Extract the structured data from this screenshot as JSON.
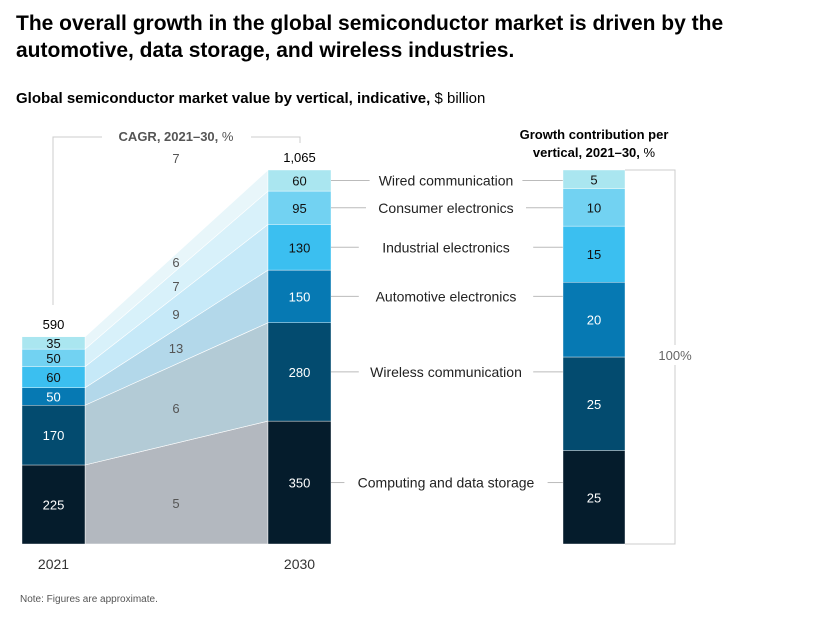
{
  "title": "The overall growth in the global semiconductor market is driven by the automotive, data storage, and wireless industries.",
  "subtitle": "Global semiconductor market value by vertical, indicative,",
  "subtitle_unit": "$ billion",
  "note": "Note: Figures are approximate.",
  "chart_data": [
    {
      "type": "bar",
      "stacked": true,
      "categories": [
        "2021",
        "2030"
      ],
      "totals": [
        "590",
        "1,065"
      ],
      "series": [
        {
          "name": "Computing and data storage",
          "values": [
            225,
            350
          ],
          "cagr": 5,
          "color": "#051c2c",
          "area_color": "#b3b8bf"
        },
        {
          "name": "Wireless communication",
          "values": [
            170,
            280
          ],
          "cagr": 6,
          "color": "#034b6f",
          "area_color": "#b3cbd6"
        },
        {
          "name": "Automotive electronics",
          "values": [
            50,
            150
          ],
          "cagr": 13,
          "color": "#0679b3",
          "area_color": "#b3d8ea"
        },
        {
          "name": "Industrial electronics",
          "values": [
            60,
            130
          ],
          "cagr": 9,
          "color": "#3bbff0",
          "area_color": "#c6e9f8"
        },
        {
          "name": "Consumer electronics",
          "values": [
            50,
            95
          ],
          "cagr": 7,
          "color": "#72d2f2",
          "area_color": "#d8f1fa"
        },
        {
          "name": "Wired communication",
          "values": [
            35,
            60
          ],
          "cagr": 6,
          "color": "#aae6f0",
          "area_color": "#e8f6fa"
        }
      ],
      "cagr_title": "CAGR, 2021–30,",
      "cagr_unit": "%",
      "cagr_total": 7,
      "ylim": [
        0,
        1065
      ]
    },
    {
      "type": "bar",
      "stacked": true,
      "title": "Growth contribution per vertical, 2021–30,",
      "title_unit": "%",
      "values": [
        25,
        25,
        20,
        15,
        10,
        5
      ],
      "total_label": "100%"
    }
  ]
}
